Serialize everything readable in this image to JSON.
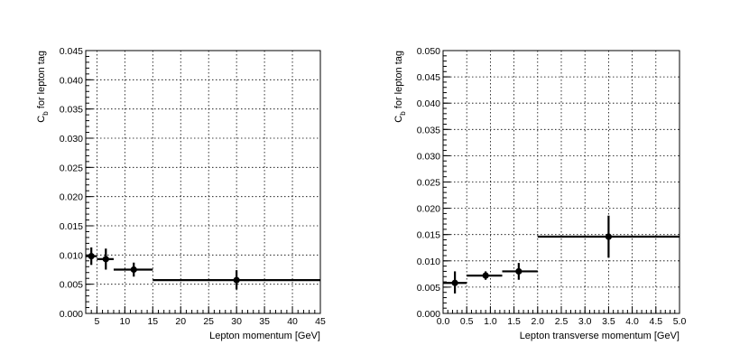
{
  "chart_data": [
    {
      "type": "scatter",
      "title": "",
      "xlabel": "Lepton momentum [GeV]",
      "ylabel": "C",
      "ylabel_sub": "b",
      "ylabel_rest": " for lepton tag",
      "xlim": [
        3,
        45
      ],
      "ylim": [
        0,
        0.045
      ],
      "grid": true,
      "legend": "none",
      "x_ticks": [
        5,
        10,
        15,
        20,
        25,
        30,
        35,
        40,
        45
      ],
      "x_tick_labels": [
        "5",
        "10",
        "15",
        "20",
        "25",
        "30",
        "35",
        "40",
        "45"
      ],
      "y_ticks": [
        0,
        0.005,
        0.01,
        0.015,
        0.02,
        0.025,
        0.03,
        0.035,
        0.04,
        0.045
      ],
      "y_tick_labels": [
        "0.000",
        "0.005",
        "0.010",
        "0.015",
        "0.020",
        "0.025",
        "0.030",
        "0.035",
        "0.040",
        "0.045"
      ],
      "series": [
        {
          "points": [
            {
              "x": 4.0,
              "y": 0.0098,
              "xlo": 3.0,
              "xhi": 5.0,
              "ylo": 0.0083,
              "yhi": 0.0113
            },
            {
              "x": 6.6,
              "y": 0.0093,
              "xlo": 5.0,
              "xhi": 8.0,
              "ylo": 0.0075,
              "yhi": 0.0111
            },
            {
              "x": 11.6,
              "y": 0.0075,
              "xlo": 8.0,
              "xhi": 15.0,
              "ylo": 0.0063,
              "yhi": 0.0087
            },
            {
              "x": 30.0,
              "y": 0.0057,
              "xlo": 15.0,
              "xhi": 45.0,
              "ylo": 0.0041,
              "yhi": 0.0074
            }
          ]
        }
      ]
    },
    {
      "type": "scatter",
      "title": "",
      "xlabel": "Lepton transverse momentum [GeV]",
      "ylabel": "C",
      "ylabel_sub": "b",
      "ylabel_rest": " for lepton tag",
      "xlim": [
        0,
        5
      ],
      "ylim": [
        0,
        0.05
      ],
      "grid": true,
      "legend": "none",
      "x_ticks": [
        0,
        0.5,
        1,
        1.5,
        2,
        2.5,
        3,
        3.5,
        4,
        4.5,
        5
      ],
      "x_tick_labels": [
        "0.0",
        "0.5",
        "1.0",
        "1.5",
        "2.0",
        "2.5",
        "3.0",
        "3.5",
        "4.0",
        "4.5",
        "5.0"
      ],
      "y_ticks": [
        0,
        0.005,
        0.01,
        0.015,
        0.02,
        0.025,
        0.03,
        0.035,
        0.04,
        0.045,
        0.05
      ],
      "y_tick_labels": [
        "0.000",
        "0.005",
        "0.010",
        "0.015",
        "0.020",
        "0.025",
        "0.030",
        "0.035",
        "0.040",
        "0.045",
        "0.050"
      ],
      "series": [
        {
          "points": [
            {
              "x": 0.25,
              "y": 0.0058,
              "xlo": 0.0,
              "xhi": 0.5,
              "ylo": 0.0038,
              "yhi": 0.008
            },
            {
              "x": 0.9,
              "y": 0.0072,
              "xlo": 0.5,
              "xhi": 1.25,
              "ylo": 0.0064,
              "yhi": 0.008
            },
            {
              "x": 1.6,
              "y": 0.008,
              "xlo": 1.25,
              "xhi": 2.0,
              "ylo": 0.0064,
              "yhi": 0.0096
            },
            {
              "x": 3.5,
              "y": 0.0146,
              "xlo": 2.0,
              "xhi": 5.0,
              "ylo": 0.0106,
              "yhi": 0.0186
            }
          ]
        }
      ]
    }
  ]
}
